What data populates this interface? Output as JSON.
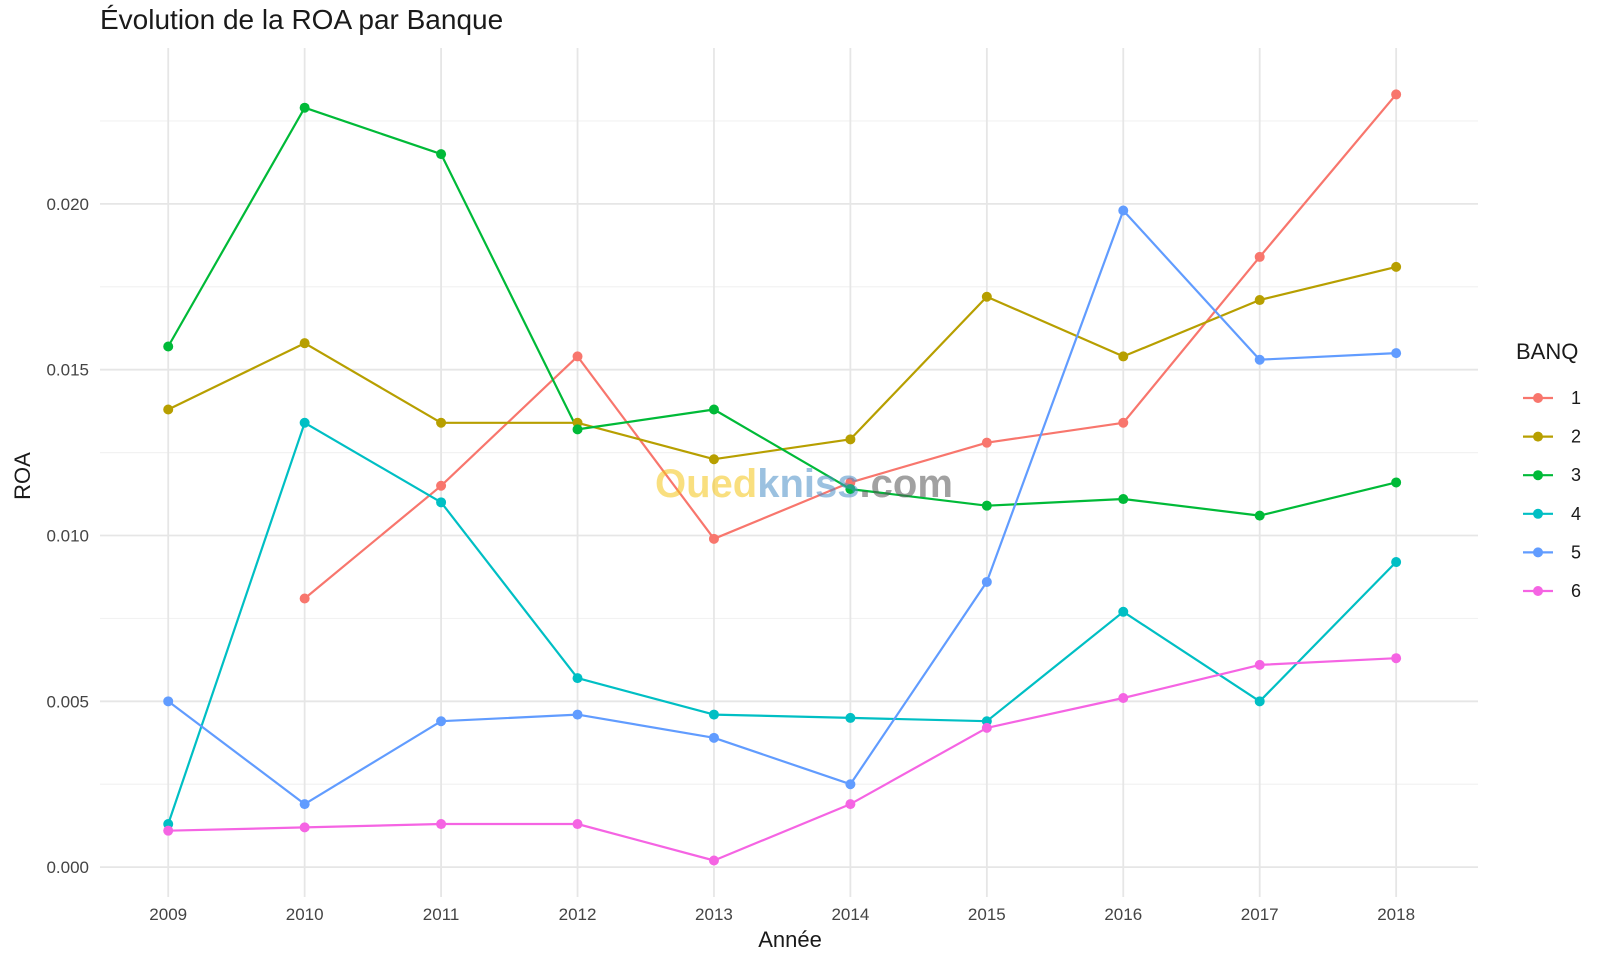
{
  "chart_data": {
    "type": "line",
    "title": "Évolution de la ROA par Banque",
    "xlabel": "Année",
    "ylabel": "ROA",
    "x": [
      2009,
      2010,
      2011,
      2012,
      2013,
      2014,
      2015,
      2016,
      2017,
      2018
    ],
    "x_tick_labels": [
      "2009",
      "2010",
      "2011",
      "2012",
      "2013",
      "2014",
      "2015",
      "2016",
      "2017",
      "2018"
    ],
    "y_ticks": [
      0.0,
      0.005,
      0.01,
      0.015,
      0.02
    ],
    "y_tick_labels": [
      "0.000",
      "0.005",
      "0.010",
      "0.015",
      "0.020"
    ],
    "xlim": [
      2008.5,
      2018.6
    ],
    "ylim": [
      -0.0009,
      0.0247
    ],
    "grid": true,
    "legend": {
      "title": "BANQ",
      "position": "right"
    },
    "series": [
      {
        "name": "1",
        "color": "#F8766D",
        "values": [
          null,
          0.0081,
          0.0115,
          0.0154,
          0.0099,
          0.0116,
          0.0128,
          0.0134,
          0.0184,
          0.0233
        ]
      },
      {
        "name": "2",
        "color": "#B79F00",
        "values": [
          0.0138,
          0.0158,
          0.0134,
          0.0134,
          0.0123,
          0.0129,
          0.0172,
          0.0154,
          0.0171,
          0.0181
        ]
      },
      {
        "name": "3",
        "color": "#00BA38",
        "values": [
          0.0157,
          0.0229,
          0.0215,
          0.0132,
          0.0138,
          0.0114,
          0.0109,
          0.0111,
          0.0106,
          0.0116
        ]
      },
      {
        "name": "4",
        "color": "#00BFC4",
        "values": [
          0.0013,
          0.0134,
          0.011,
          0.0057,
          0.0046,
          0.0045,
          0.0044,
          0.0077,
          0.005,
          0.0092
        ]
      },
      {
        "name": "5",
        "color": "#619CFF",
        "values": [
          0.005,
          0.0019,
          0.0044,
          0.0046,
          0.0039,
          0.0025,
          0.0086,
          0.0198,
          0.0153,
          0.0155
        ]
      },
      {
        "name": "6",
        "color": "#F564E3",
        "values": [
          0.0011,
          0.0012,
          0.0013,
          0.0013,
          0.0002,
          0.0019,
          0.0042,
          0.0051,
          0.0061,
          0.0063
        ]
      }
    ]
  },
  "watermark": {
    "part1": "Oued",
    "part2": "kniss",
    "part3": ".com",
    "color1": "#F5C518",
    "color2": "#4A90C8",
    "color3": "#555555"
  }
}
